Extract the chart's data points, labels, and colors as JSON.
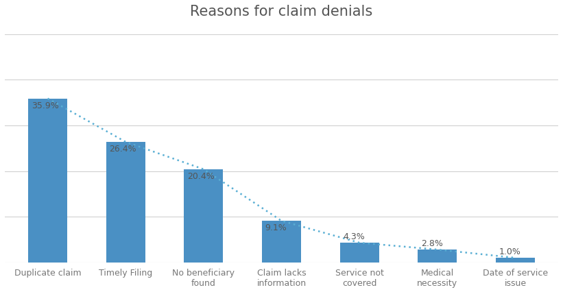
{
  "title": "Reasons for claim denials",
  "categories": [
    "Duplicate claim",
    "Timely Filing",
    "No beneficiary\nfound",
    "Claim lacks\ninformation",
    "Service not\ncovered",
    "Medical\nnecessity",
    "Date of service\nissue"
  ],
  "values": [
    35.9,
    26.4,
    20.4,
    9.1,
    4.3,
    2.8,
    1.0
  ],
  "bar_color": "#4a90c4",
  "dotted_line_color": "#5aafd4",
  "background_color": "#ffffff",
  "title_fontsize": 15,
  "ylim": [
    0,
    50
  ],
  "grid_color": "#d0d0d0",
  "label_fontsize": 9,
  "tick_fontsize": 9,
  "title_color": "#555555",
  "label_color": "#555555",
  "tick_color": "#777777"
}
